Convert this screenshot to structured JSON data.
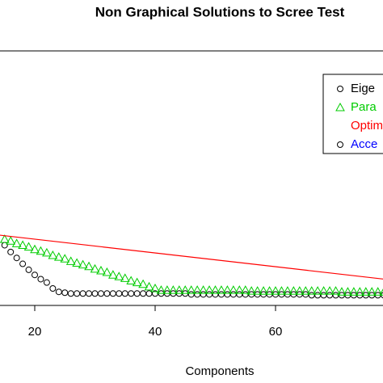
{
  "chart_data": {
    "type": "line",
    "title": "Non Graphical Solutions to Scree Test",
    "xlabel": "Components",
    "xlim": [
      0,
      80
    ],
    "xticks": [
      20,
      40,
      60
    ],
    "ylim": [
      0,
      3
    ],
    "series": [
      {
        "name": "Eige",
        "color": "#000000",
        "marker": "circle",
        "x": [
          15,
          16,
          17,
          18,
          19,
          20,
          21,
          22,
          23,
          24,
          25,
          26,
          27,
          28,
          29,
          30,
          31,
          32,
          33,
          34,
          35,
          36,
          37,
          38,
          39,
          40,
          41,
          42,
          43,
          44,
          45,
          46,
          47,
          48,
          49,
          50,
          51,
          52,
          53,
          54,
          55,
          56,
          57,
          58,
          59,
          60,
          61,
          62,
          63,
          64,
          65,
          66,
          67,
          68,
          69,
          70,
          71,
          72,
          73,
          74,
          75,
          76,
          77,
          78
        ],
        "values": [
          0.71,
          0.63,
          0.56,
          0.49,
          0.42,
          0.36,
          0.31,
          0.27,
          0.2,
          0.16,
          0.15,
          0.14,
          0.14,
          0.14,
          0.14,
          0.14,
          0.14,
          0.14,
          0.14,
          0.14,
          0.14,
          0.14,
          0.14,
          0.14,
          0.14,
          0.14,
          0.14,
          0.14,
          0.14,
          0.14,
          0.14,
          0.13,
          0.13,
          0.13,
          0.13,
          0.13,
          0.13,
          0.13,
          0.13,
          0.13,
          0.13,
          0.13,
          0.13,
          0.13,
          0.13,
          0.13,
          0.13,
          0.13,
          0.13,
          0.13,
          0.13,
          0.12,
          0.12,
          0.12,
          0.12,
          0.12,
          0.12,
          0.12,
          0.12,
          0.12,
          0.12,
          0.12,
          0.12,
          0.12
        ]
      },
      {
        "name": "Para",
        "color": "#00cc00",
        "marker": "triangle",
        "x": [
          15,
          16,
          17,
          18,
          19,
          20,
          21,
          22,
          23,
          24,
          25,
          26,
          27,
          28,
          29,
          30,
          31,
          32,
          33,
          34,
          35,
          36,
          37,
          38,
          39,
          40,
          41,
          42,
          43,
          44,
          45,
          46,
          47,
          48,
          49,
          50,
          51,
          52,
          53,
          54,
          55,
          56,
          57,
          58,
          59,
          60,
          61,
          62,
          63,
          64,
          65,
          66,
          67,
          68,
          69,
          70,
          71,
          72,
          73,
          74,
          75,
          76,
          77,
          78
        ],
        "values": [
          0.78,
          0.76,
          0.73,
          0.71,
          0.69,
          0.66,
          0.64,
          0.62,
          0.59,
          0.57,
          0.55,
          0.52,
          0.5,
          0.48,
          0.46,
          0.43,
          0.41,
          0.39,
          0.36,
          0.34,
          0.32,
          0.29,
          0.27,
          0.25,
          0.22,
          0.2,
          0.18,
          0.18,
          0.18,
          0.18,
          0.18,
          0.18,
          0.18,
          0.18,
          0.18,
          0.18,
          0.18,
          0.18,
          0.18,
          0.18,
          0.18,
          0.17,
          0.17,
          0.17,
          0.17,
          0.17,
          0.17,
          0.17,
          0.17,
          0.17,
          0.17,
          0.17,
          0.17,
          0.17,
          0.17,
          0.17,
          0.16,
          0.16,
          0.16,
          0.16,
          0.16,
          0.16,
          0.16,
          0.16
        ]
      },
      {
        "name": "Optim",
        "color": "#ff0000",
        "marker": "line",
        "x": [
          14,
          78
        ],
        "values": [
          0.83,
          0.31
        ]
      },
      {
        "name": "Acce",
        "color": "#0000ff",
        "marker": "circle",
        "x": [],
        "values": []
      }
    ]
  }
}
